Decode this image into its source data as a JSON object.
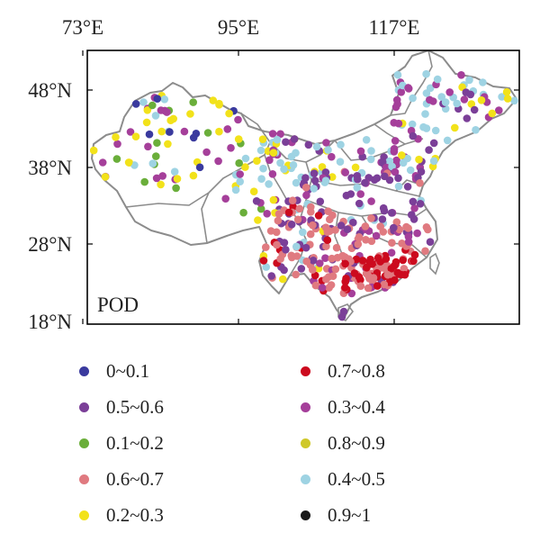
{
  "map": {
    "panel_label": "POD",
    "lon_ticks": [
      "73°E",
      "95°E",
      "117°E"
    ],
    "lat_ticks": [
      "48°N",
      "38°N",
      "28°N",
      "18°N"
    ]
  },
  "legend": [
    {
      "label": "0~0.1",
      "color": "#3a3a9e"
    },
    {
      "label": "0.5~0.6",
      "color": "#7b3f98"
    },
    {
      "label": "0.1~0.2",
      "color": "#6aae3a"
    },
    {
      "label": "0.6~0.7",
      "color": "#e07a80"
    },
    {
      "label": "0.2~0.3",
      "color": "#f2e21a"
    },
    {
      "label": "0.7~0.8",
      "color": "#cc0a1e"
    },
    {
      "label": "0.3~0.4",
      "color": "#a53f9a"
    },
    {
      "label": "0.8~0.9",
      "color": "#cfc82a"
    },
    {
      "label": "0.4~0.5",
      "color": "#9ed3e3"
    },
    {
      "label": "0.9~1",
      "color": "#1a1a1a"
    }
  ]
}
